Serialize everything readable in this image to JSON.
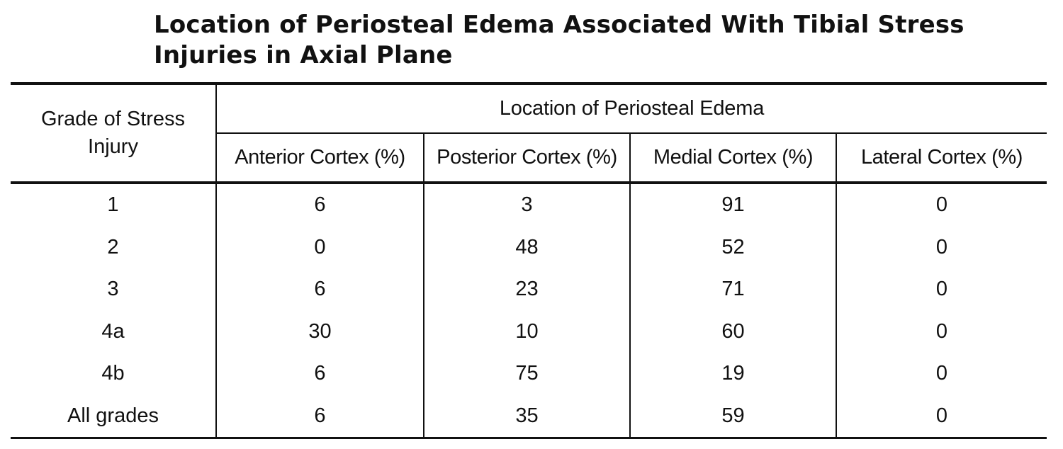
{
  "title": {
    "line1": "Location of Periosteal Edema Associated With Tibial Stress",
    "line2": "Injuries in Axial Plane"
  },
  "table": {
    "row_header": [
      "Grade of Stress",
      "Injury"
    ],
    "group_header": "Location of Periosteal Edema",
    "columns": [
      "Anterior Cortex (%)",
      "Posterior Cortex (%)",
      "Medial Cortex (%)",
      "Lateral Cortex (%)"
    ],
    "rows": [
      {
        "grade": "1",
        "values": [
          "6",
          "3",
          "91",
          "0"
        ]
      },
      {
        "grade": "2",
        "values": [
          "0",
          "48",
          "52",
          "0"
        ]
      },
      {
        "grade": "3",
        "values": [
          "6",
          "23",
          "71",
          "0"
        ]
      },
      {
        "grade": "4a",
        "values": [
          "30",
          "10",
          "60",
          "0"
        ]
      },
      {
        "grade": "4b",
        "values": [
          "6",
          "75",
          "19",
          "0"
        ]
      },
      {
        "grade": "All grades",
        "values": [
          "6",
          "35",
          "59",
          "0"
        ]
      }
    ]
  }
}
